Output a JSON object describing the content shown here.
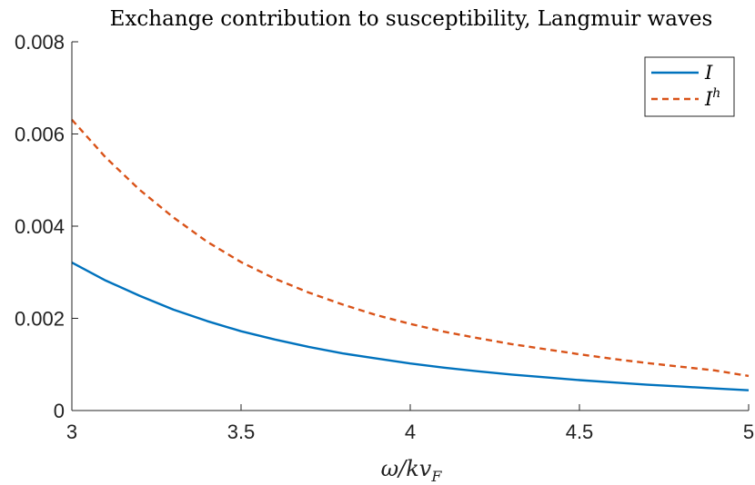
{
  "chart_data": {
    "type": "line",
    "title": "Exchange contribution to susceptibility, Langmuir waves",
    "xlabel": "ω/kv",
    "xlabel_sub": "F",
    "ylabel": "",
    "xlim": [
      3,
      5
    ],
    "ylim": [
      0,
      0.008
    ],
    "xticks": [
      3,
      3.5,
      4,
      4.5,
      5
    ],
    "xtick_labels": [
      "3",
      "3.5",
      "4",
      "4.5",
      "5"
    ],
    "yticks": [
      0,
      0.002,
      0.004,
      0.006,
      0.008
    ],
    "ytick_labels": [
      "0",
      "0.002",
      "0.004",
      "0.006",
      "0.008"
    ],
    "grid": false,
    "legend_position": "top-right",
    "series": [
      {
        "name": "I",
        "name_sup": "",
        "color": "#0072BD",
        "style": "solid",
        "x": [
          3.0,
          3.1,
          3.2,
          3.3,
          3.4,
          3.5,
          3.6,
          3.7,
          3.8,
          3.9,
          4.0,
          4.1,
          4.2,
          4.3,
          4.4,
          4.5,
          4.6,
          4.7,
          4.8,
          4.9,
          5.0
        ],
        "y": [
          0.00321,
          0.00282,
          0.00249,
          0.00219,
          0.00194,
          0.00172,
          0.00154,
          0.00138,
          0.00124,
          0.00113,
          0.00102,
          0.00093,
          0.00085,
          0.00078,
          0.00072,
          0.00066,
          0.00061,
          0.00056,
          0.00052,
          0.00048,
          0.00044
        ]
      },
      {
        "name": "I",
        "name_sup": "h",
        "color": "#D95319",
        "style": "dashed",
        "x": [
          3.0,
          3.1,
          3.2,
          3.3,
          3.4,
          3.5,
          3.6,
          3.7,
          3.8,
          3.9,
          4.0,
          4.1,
          4.2,
          4.3,
          4.4,
          4.5,
          4.6,
          4.7,
          4.8,
          4.9,
          5.0
        ],
        "y": [
          0.00631,
          0.00549,
          0.00479,
          0.00419,
          0.00366,
          0.00322,
          0.00286,
          0.00256,
          0.0023,
          0.00207,
          0.00188,
          0.00171,
          0.00157,
          0.00144,
          0.00133,
          0.00122,
          0.00112,
          0.00103,
          0.00095,
          0.00087,
          0.00075
        ]
      }
    ]
  }
}
